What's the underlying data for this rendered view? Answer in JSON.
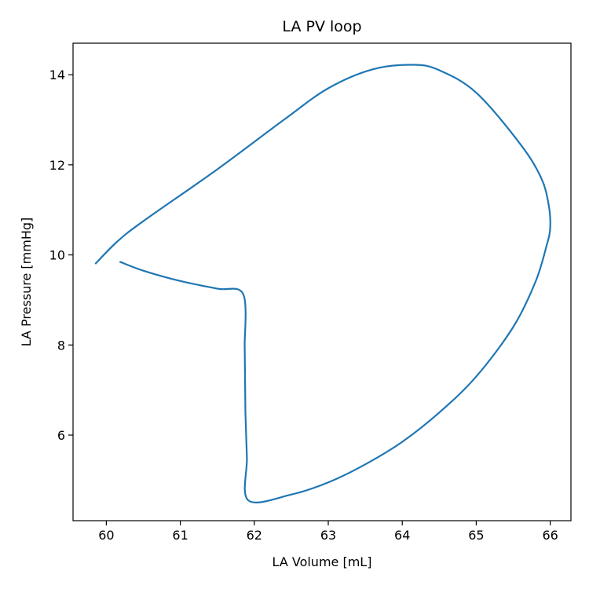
{
  "chart_data": {
    "type": "line",
    "title": "LA PV loop",
    "xlabel": "LA Volume [mL]",
    "ylabel": "LA Pressure [mmHg]",
    "xlim": [
      59.55,
      66.28
    ],
    "ylim": [
      4.1,
      14.7
    ],
    "xticks": [
      60,
      61,
      62,
      63,
      64,
      65,
      66
    ],
    "yticks": [
      6,
      8,
      10,
      12,
      14
    ],
    "grid": false,
    "legend": "none",
    "series": [
      {
        "color": "#1f77b4",
        "x": [
          60.18,
          60.5,
          61.0,
          61.5,
          61.85,
          61.87,
          61.88,
          61.9,
          61.92,
          62.5,
          63.0,
          63.5,
          64.0,
          64.5,
          65.0,
          65.5,
          65.8,
          65.95,
          66.0,
          65.98,
          65.88,
          65.6,
          65.0,
          64.5,
          64.15,
          63.6,
          63.0,
          62.4,
          61.5,
          60.5,
          60.15,
          59.85
        ],
        "y": [
          9.85,
          9.65,
          9.42,
          9.25,
          9.13,
          8.0,
          6.5,
          5.5,
          4.55,
          4.68,
          4.95,
          5.35,
          5.85,
          6.5,
          7.3,
          8.4,
          9.4,
          10.2,
          10.6,
          11.1,
          11.7,
          12.45,
          13.6,
          14.1,
          14.22,
          14.12,
          13.7,
          13.0,
          11.9,
          10.75,
          10.3,
          9.8
        ]
      }
    ]
  }
}
